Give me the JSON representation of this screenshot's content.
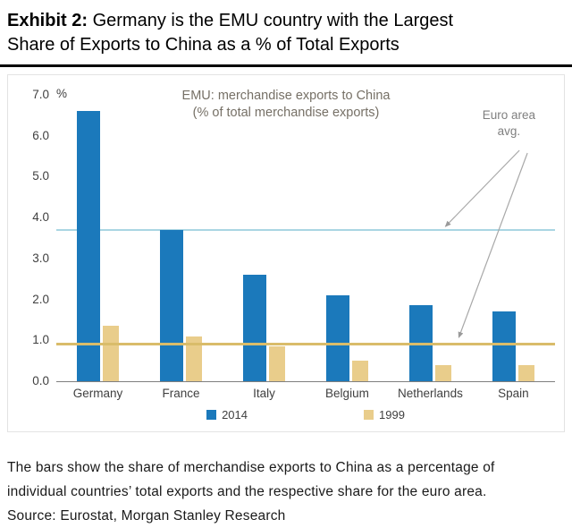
{
  "exhibit": {
    "label": "Exhibit 2:",
    "title_line1": " Germany is the EMU country with the Largest",
    "title_line2": "Share of Exports to China as a % of Total Exports"
  },
  "chart_data": {
    "type": "bar",
    "title_line1": "EMU: merchandise exports to China",
    "title_line2": "(% of total merchandise exports)",
    "y_unit": "%",
    "ylim": [
      0,
      7
    ],
    "ytick_labels": [
      "7.0",
      "6.0",
      "5.0",
      "4.0",
      "3.0",
      "2.0",
      "1.0",
      "0.0"
    ],
    "grid": false,
    "legend_position": "bottom",
    "categories": [
      "Germany",
      "France",
      "Italy",
      "Belgium",
      "Netherlands",
      "Spain"
    ],
    "series": [
      {
        "name": "2014",
        "color": "#1b79bb",
        "values": [
          6.6,
          3.7,
          2.6,
          2.1,
          1.85,
          1.7
        ]
      },
      {
        "name": "1999",
        "color": "#e9cd8b",
        "values": [
          1.35,
          1.1,
          0.85,
          0.5,
          0.4,
          0.4
        ]
      }
    ],
    "reference_lines": [
      {
        "name": "Euro area avg 2014",
        "value": 3.7,
        "color": "#aad6e3"
      },
      {
        "name": "Euro area avg 1999",
        "value": 0.9,
        "color": "#d9bc6a"
      }
    ],
    "annotation": {
      "line1": "Euro area",
      "line2": "avg."
    }
  },
  "caption": {
    "line1": "The bars show the share of merchandise exports to China as a percentage of",
    "line2": "individual countries’ total exports and the respective share for the euro area.",
    "source": "Source: Eurostat, Morgan Stanley Research"
  }
}
